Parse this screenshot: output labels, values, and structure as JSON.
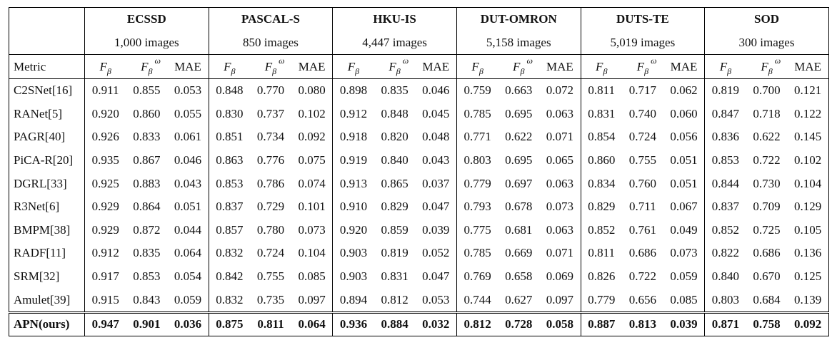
{
  "metric_header": "Metric",
  "datasets": [
    {
      "name": "ECSSD",
      "images": "1,000 images"
    },
    {
      "name": "PASCAL-S",
      "images": "850 images"
    },
    {
      "name": "HKU-IS",
      "images": "4,447 images"
    },
    {
      "name": "DUT-OMRON",
      "images": "5,158 images"
    },
    {
      "name": "DUTS-TE",
      "images": "5,019 images"
    },
    {
      "name": "SOD",
      "images": "300 images"
    }
  ],
  "metrics": [
    {
      "base": "F",
      "sub": "β"
    },
    {
      "base": "F",
      "sub": "β",
      "sup": "ω"
    },
    {
      "text": "MAE"
    }
  ],
  "rows": [
    {
      "method": "C2SNet[16]",
      "values": [
        "0.911",
        "0.855",
        "0.053",
        "0.848",
        "0.770",
        "0.080",
        "0.898",
        "0.835",
        "0.046",
        "0.759",
        "0.663",
        "0.072",
        "0.811",
        "0.717",
        "0.062",
        "0.819",
        "0.700",
        "0.121"
      ]
    },
    {
      "method": "RANet[5]",
      "values": [
        "0.920",
        "0.860",
        "0.055",
        "0.830",
        "0.737",
        "0.102",
        "0.912",
        "0.848",
        "0.045",
        "0.785",
        "0.695",
        "0.063",
        "0.831",
        "0.740",
        "0.060",
        "0.847",
        "0.718",
        "0.122"
      ]
    },
    {
      "method": "PAGR[40]",
      "values": [
        "0.926",
        "0.833",
        "0.061",
        "0.851",
        "0.734",
        "0.092",
        "0.918",
        "0.820",
        "0.048",
        "0.771",
        "0.622",
        "0.071",
        "0.854",
        "0.724",
        "0.056",
        "0.836",
        "0.622",
        "0.145"
      ]
    },
    {
      "method": "PiCA-R[20]",
      "values": [
        "0.935",
        "0.867",
        "0.046",
        "0.863",
        "0.776",
        "0.075",
        "0.919",
        "0.840",
        "0.043",
        "0.803",
        "0.695",
        "0.065",
        "0.860",
        "0.755",
        "0.051",
        "0.853",
        "0.722",
        "0.102"
      ]
    },
    {
      "method": "DGRL[33]",
      "values": [
        "0.925",
        "0.883",
        "0.043",
        "0.853",
        "0.786",
        "0.074",
        "0.913",
        "0.865",
        "0.037",
        "0.779",
        "0.697",
        "0.063",
        "0.834",
        "0.760",
        "0.051",
        "0.844",
        "0.730",
        "0.104"
      ]
    },
    {
      "method": "R3Net[6]",
      "values": [
        "0.929",
        "0.864",
        "0.051",
        "0.837",
        "0.729",
        "0.101",
        "0.910",
        "0.829",
        "0.047",
        "0.793",
        "0.678",
        "0.073",
        "0.829",
        "0.711",
        "0.067",
        "0.837",
        "0.709",
        "0.129"
      ]
    },
    {
      "method": "BMPM[38]",
      "values": [
        "0.929",
        "0.872",
        "0.044",
        "0.857",
        "0.780",
        "0.073",
        "0.920",
        "0.859",
        "0.039",
        "0.775",
        "0.681",
        "0.063",
        "0.852",
        "0.761",
        "0.049",
        "0.852",
        "0.725",
        "0.105"
      ]
    },
    {
      "method": "RADF[11]",
      "values": [
        "0.912",
        "0.835",
        "0.064",
        "0.832",
        "0.724",
        "0.104",
        "0.903",
        "0.819",
        "0.052",
        "0.785",
        "0.669",
        "0.071",
        "0.811",
        "0.686",
        "0.073",
        "0.822",
        "0.686",
        "0.136"
      ]
    },
    {
      "method": "SRM[32]",
      "values": [
        "0.917",
        "0.853",
        "0.054",
        "0.842",
        "0.755",
        "0.085",
        "0.903",
        "0.831",
        "0.047",
        "0.769",
        "0.658",
        "0.069",
        "0.826",
        "0.722",
        "0.059",
        "0.840",
        "0.670",
        "0.125"
      ]
    },
    {
      "method": "Amulet[39]",
      "values": [
        "0.915",
        "0.843",
        "0.059",
        "0.832",
        "0.735",
        "0.097",
        "0.894",
        "0.812",
        "0.053",
        "0.744",
        "0.627",
        "0.097",
        "0.779",
        "0.656",
        "0.085",
        "0.803",
        "0.684",
        "0.139"
      ]
    },
    {
      "method": "APN(ours)",
      "values": [
        "0.947",
        "0.901",
        "0.036",
        "0.875",
        "0.811",
        "0.064",
        "0.936",
        "0.884",
        "0.032",
        "0.812",
        "0.728",
        "0.058",
        "0.887",
        "0.813",
        "0.039",
        "0.871",
        "0.758",
        "0.092"
      ]
    }
  ]
}
